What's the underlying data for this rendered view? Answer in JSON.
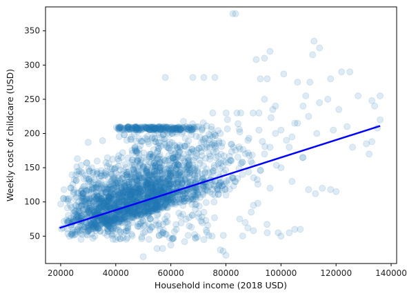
{
  "chart_data": {
    "type": "scatter",
    "title": "",
    "xlabel": "Household income (2018 USD)",
    "ylabel": "Weekly cost of childcare (USD)",
    "xlim": [
      14500,
      142000
    ],
    "ylim": [
      10,
      385
    ],
    "x_ticks": [
      20000,
      40000,
      60000,
      80000,
      100000,
      120000,
      140000
    ],
    "x_tick_labels": [
      "20000",
      "40000",
      "60000",
      "80000",
      "100000",
      "120000",
      "140000"
    ],
    "y_ticks": [
      50,
      100,
      150,
      200,
      250,
      300,
      350
    ],
    "y_tick_labels": [
      "50",
      "100",
      "150",
      "200",
      "250",
      "300",
      "350"
    ],
    "grid": false,
    "legend": "none",
    "point_color": "#1f77b4",
    "point_alpha": 0.15,
    "series": [
      {
        "kind": "points",
        "cluster_points": [
          [
            20000,
            97
          ],
          [
            21000,
            62
          ],
          [
            22000,
            104
          ],
          [
            24000,
            70
          ],
          [
            26000,
            88
          ],
          [
            28000,
            112
          ],
          [
            30000,
            58
          ],
          [
            32000,
            120
          ],
          [
            34000,
            135
          ],
          [
            36000,
            80
          ],
          [
            38000,
            150
          ],
          [
            40000,
            45
          ],
          [
            42000,
            165
          ],
          [
            44000,
            190
          ],
          [
            46000,
            208
          ],
          [
            48000,
            160
          ],
          [
            50000,
            55
          ],
          [
            52000,
            185
          ],
          [
            54000,
            140
          ],
          [
            56000,
            210
          ],
          [
            58000,
            95
          ],
          [
            60000,
            175
          ],
          [
            62000,
            60
          ],
          [
            64000,
            200
          ],
          [
            66000,
            150
          ],
          [
            68000,
            120
          ],
          [
            70000,
            210
          ],
          [
            72000,
            85
          ],
          [
            74000,
            170
          ],
          [
            76000,
            130
          ],
          [
            78000,
            200
          ],
          [
            80000,
            110
          ],
          [
            82000,
            160
          ],
          [
            84000,
            230
          ],
          [
            86000,
            140
          ],
          [
            88000,
            190
          ],
          [
            90000,
            95
          ],
          [
            92000,
            205
          ],
          [
            94000,
            170
          ],
          [
            96000,
            120
          ],
          [
            98000,
            240
          ],
          [
            100000,
            150
          ],
          [
            102000,
            190
          ],
          [
            104000,
            130
          ],
          [
            106000,
            215
          ],
          [
            108000,
            165
          ]
        ],
        "outliers": [
          [
            82500,
            375
          ],
          [
            83500,
            375
          ],
          [
            112000,
            335
          ],
          [
            114000,
            325
          ],
          [
            111500,
            315
          ],
          [
            96000,
            320
          ],
          [
            94000,
            310
          ],
          [
            91000,
            308
          ],
          [
            101000,
            287
          ],
          [
            92500,
            280
          ],
          [
            95000,
            280
          ],
          [
            58000,
            282
          ],
          [
            68000,
            282
          ],
          [
            72000,
            282
          ],
          [
            76000,
            282
          ],
          [
            110500,
            275
          ],
          [
            118000,
            280
          ],
          [
            122000,
            290
          ],
          [
            125000,
            290
          ],
          [
            136000,
            255
          ],
          [
            133000,
            248
          ],
          [
            128000,
            255
          ],
          [
            134000,
            240
          ],
          [
            136000,
            220
          ],
          [
            131000,
            185
          ],
          [
            133000,
            188
          ],
          [
            135000,
            208
          ],
          [
            132000,
            170
          ],
          [
            115000,
            120
          ],
          [
            118000,
            118
          ],
          [
            120000,
            115
          ],
          [
            112500,
            112
          ],
          [
            110000,
            118
          ],
          [
            105000,
            60
          ],
          [
            107000,
            60
          ],
          [
            103000,
            55
          ],
          [
            79000,
            28
          ],
          [
            80000,
            22
          ],
          [
            78000,
            30
          ],
          [
            50000,
            20
          ],
          [
            55000,
            32
          ],
          [
            57000,
            32
          ],
          [
            60000,
            37
          ],
          [
            124000,
            210
          ],
          [
            126000,
            180
          ],
          [
            117000,
            250
          ],
          [
            114000,
            245
          ],
          [
            119000,
            205
          ],
          [
            113000,
            200
          ],
          [
            121000,
            235
          ],
          [
            105000,
            215
          ],
          [
            108000,
            240
          ],
          [
            110000,
            225
          ],
          [
            109000,
            255
          ],
          [
            106000,
            275
          ],
          [
            104000,
            195
          ],
          [
            103000,
            180
          ],
          [
            100000,
            205
          ],
          [
            98000,
            200
          ],
          [
            96000,
            180
          ],
          [
            94000,
            250
          ],
          [
            97000,
            235
          ],
          [
            92000,
            230
          ],
          [
            99000,
            55
          ],
          [
            100000,
            50
          ],
          [
            95000,
            55
          ],
          [
            88000,
            62
          ],
          [
            90000,
            58
          ],
          [
            85000,
            75
          ],
          [
            87000,
            70
          ],
          [
            75000,
            50
          ],
          [
            72000,
            45
          ],
          [
            65000,
            42
          ]
        ]
      },
      {
        "kind": "regression_line",
        "color": "#0000ff",
        "x": [
          19600,
          136000
        ],
        "y": [
          62,
          211
        ]
      }
    ]
  }
}
